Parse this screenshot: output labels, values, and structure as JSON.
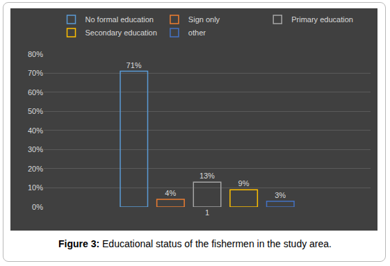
{
  "chart_data": {
    "type": "bar",
    "caption": "Figure 3: Educational status of the fishermen in the study area.",
    "categories": [
      "1"
    ],
    "series": [
      {
        "name": "No formal education",
        "color": "#5B9BD5",
        "values": [
          71
        ],
        "value_labels": [
          "71%"
        ]
      },
      {
        "name": "Sign only",
        "color": "#ED7D31",
        "values": [
          4
        ],
        "value_labels": [
          "4%"
        ]
      },
      {
        "name": "Primary education",
        "color": "#A5A5A5",
        "values": [
          13
        ],
        "value_labels": [
          "13%"
        ]
      },
      {
        "name": "Secondary education",
        "color": "#FFC000",
        "values": [
          9
        ],
        "value_labels": [
          "9%"
        ]
      },
      {
        "name": "other",
        "color": "#4472C4",
        "values": [
          3
        ],
        "value_labels": [
          "3%"
        ]
      }
    ],
    "ylim": [
      0,
      80
    ],
    "yticks": [
      {
        "value": 0,
        "label": "0%"
      },
      {
        "value": 10,
        "label": "10%"
      },
      {
        "value": 20,
        "label": "20%"
      },
      {
        "value": 30,
        "label": "30%"
      },
      {
        "value": 40,
        "label": "40%"
      },
      {
        "value": 50,
        "label": "50%"
      },
      {
        "value": 60,
        "label": "60%"
      },
      {
        "value": 70,
        "label": "70%"
      },
      {
        "value": 80,
        "label": "80%"
      }
    ],
    "grid": true,
    "data_labels": true,
    "legend": "top"
  }
}
